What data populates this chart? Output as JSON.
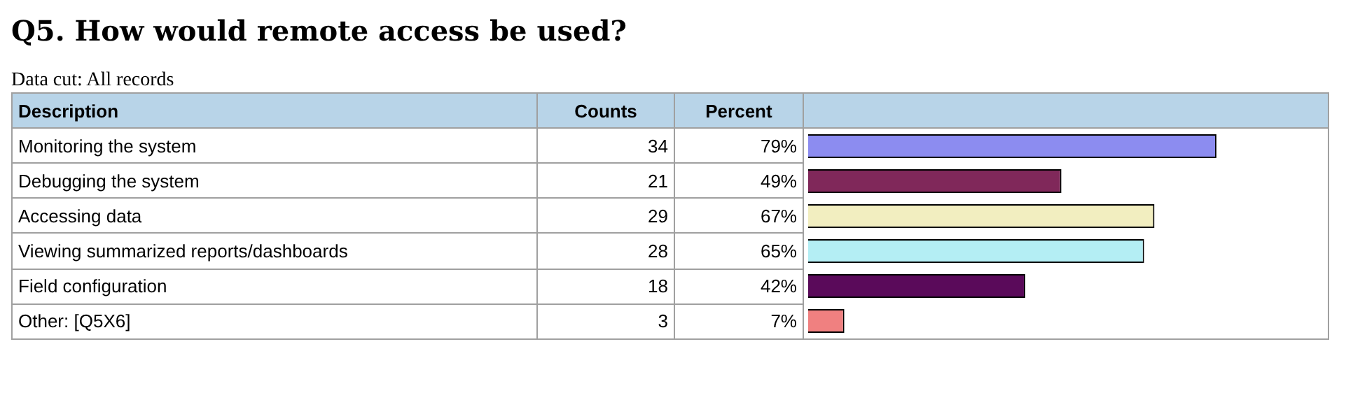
{
  "chart_data": {
    "type": "bar",
    "orientation": "horizontal",
    "title": "Q5. How would remote access be used?",
    "subtitle": "Data cut: All records",
    "ylabel": "Description",
    "xlabel": "Percent",
    "categories": [
      "Monitoring the system",
      "Debugging the system",
      "Accessing data",
      "Viewing summarized reports/dashboards",
      "Field configuration",
      "Other: [Q5X6]"
    ],
    "values": [
      79,
      49,
      67,
      65,
      42,
      7
    ],
    "value_labels": [
      "79%",
      "49%",
      "67%",
      "65%",
      "42%",
      "7%"
    ],
    "colors": [
      "#8c8cf0",
      "#80285a",
      "#f2eec0",
      "#b4eef4",
      "#5a0a5a",
      "#f08080"
    ],
    "xlim": [
      0,
      100
    ],
    "tick_labels": "y",
    "legend": false,
    "annotations": [
      "Counts",
      "34",
      "21",
      "29",
      "28",
      "18",
      "3"
    ]
  }
}
